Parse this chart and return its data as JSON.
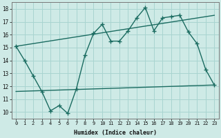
{
  "xlabel": "Humidex (Indice chaleur)",
  "background_color": "#ceeae6",
  "grid_color": "#a8d4d0",
  "line_color": "#1a6b60",
  "x_min": -0.5,
  "x_max": 23.5,
  "y_min": 9.5,
  "y_max": 18.5,
  "yticks": [
    10,
    11,
    12,
    13,
    14,
    15,
    16,
    17,
    18
  ],
  "xticks": [
    0,
    1,
    2,
    3,
    4,
    5,
    6,
    7,
    8,
    9,
    10,
    11,
    12,
    13,
    14,
    15,
    16,
    17,
    18,
    19,
    20,
    21,
    22,
    23
  ],
  "series1_x": [
    0,
    1,
    2,
    3,
    4,
    5,
    6,
    7,
    8,
    9,
    10,
    11,
    12,
    13,
    14,
    15,
    16,
    17,
    18,
    19,
    20,
    21,
    22,
    23
  ],
  "series1_y": [
    15.1,
    14.0,
    12.8,
    11.6,
    10.1,
    10.5,
    9.9,
    11.8,
    14.4,
    16.1,
    16.8,
    15.5,
    15.5,
    16.3,
    17.3,
    18.1,
    16.3,
    17.3,
    17.4,
    17.5,
    16.2,
    15.3,
    13.3,
    12.1
  ],
  "series2_x": [
    0,
    23
  ],
  "series2_y": [
    15.1,
    17.5
  ],
  "series3_x": [
    0,
    23
  ],
  "series3_y": [
    11.6,
    12.1
  ],
  "marker_size": 4,
  "line_width": 1.0
}
